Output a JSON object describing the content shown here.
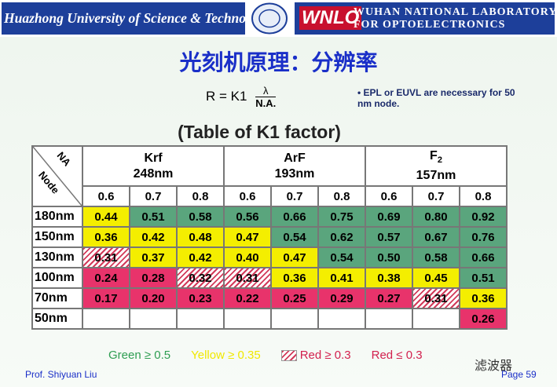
{
  "header": {
    "university": "Huazhong University of Science & Technology",
    "logo": "WNLO",
    "lab_line1": "WUHAN NATIONAL LABORATORY",
    "lab_line2": "FOR OPTOELECTRONICS"
  },
  "title": "光刻机原理：分辨率",
  "formula": {
    "lhs": "R = K1",
    "numerator": "λ",
    "denominator": "N.A."
  },
  "note": "EPL or EUVL are necessary for 50 nm node.",
  "table": {
    "title": "(Table of K1 factor)",
    "corner_top": "NA",
    "corner_bottom": "Node",
    "groups": [
      {
        "name": "Krf",
        "sub": null,
        "wavelength": "248nm"
      },
      {
        "name": "ArF",
        "sub": null,
        "wavelength": "193nm"
      },
      {
        "name": "F",
        "sub": "2",
        "wavelength": "157nm"
      }
    ],
    "na": [
      "0.6",
      "0.7",
      "0.8",
      "0.6",
      "0.7",
      "0.8",
      "0.6",
      "0.7",
      "0.8"
    ],
    "rows": [
      {
        "node": "180nm",
        "cells": [
          {
            "text": "0.44",
            "fill": "yellow"
          },
          {
            "text": "0.51",
            "fill": "green"
          },
          {
            "text": "0.58",
            "fill": "green"
          },
          {
            "text": "0.56",
            "fill": "green"
          },
          {
            "text": "0.66",
            "fill": "green"
          },
          {
            "text": "0.75",
            "fill": "green"
          },
          {
            "text": "0.69",
            "fill": "green"
          },
          {
            "text": "0.80",
            "fill": "green"
          },
          {
            "text": "0.92",
            "fill": "green"
          }
        ]
      },
      {
        "node": "150nm",
        "cells": [
          {
            "text": "0.36",
            "fill": "yellow"
          },
          {
            "text": "0.42",
            "fill": "yellow"
          },
          {
            "text": "0.48",
            "fill": "yellow"
          },
          {
            "text": "0.47",
            "fill": "yellow"
          },
          {
            "text": "0.54",
            "fill": "green"
          },
          {
            "text": "0.62",
            "fill": "green"
          },
          {
            "text": "0.57",
            "fill": "green"
          },
          {
            "text": "0.67",
            "fill": "green"
          },
          {
            "text": "0.76",
            "fill": "green"
          }
        ]
      },
      {
        "node": "130nm",
        "cells": [
          {
            "text": "0.31",
            "fill": "hatched"
          },
          {
            "text": "0.37",
            "fill": "yellow"
          },
          {
            "text": "0.42",
            "fill": "yellow"
          },
          {
            "text": "0.40",
            "fill": "yellow"
          },
          {
            "text": "0.47",
            "fill": "yellow"
          },
          {
            "text": "0.54",
            "fill": "green"
          },
          {
            "text": "0.50",
            "fill": "green"
          },
          {
            "text": "0.58",
            "fill": "green"
          },
          {
            "text": "0.66",
            "fill": "green"
          }
        ]
      },
      {
        "node": "100nm",
        "cells": [
          {
            "text": "0.24",
            "fill": "red"
          },
          {
            "text": "0.28",
            "fill": "red"
          },
          {
            "text": "0.32",
            "fill": "hatched"
          },
          {
            "text": "0.31",
            "fill": "hatched"
          },
          {
            "text": "0.36",
            "fill": "yellow"
          },
          {
            "text": "0.41",
            "fill": "yellow"
          },
          {
            "text": "0.38",
            "fill": "yellow"
          },
          {
            "text": "0.45",
            "fill": "yellow"
          },
          {
            "text": "0.51",
            "fill": "green"
          }
        ]
      },
      {
        "node": "70nm",
        "cells": [
          {
            "text": "0.17",
            "fill": "red"
          },
          {
            "text": "0.20",
            "fill": "red"
          },
          {
            "text": "0.23",
            "fill": "red"
          },
          {
            "text": "0.22",
            "fill": "red"
          },
          {
            "text": "0.25",
            "fill": "red"
          },
          {
            "text": "0.29",
            "fill": "red"
          },
          {
            "text": "0.27",
            "fill": "red"
          },
          {
            "text": "0.31",
            "fill": "hatched"
          },
          {
            "text": "0.36",
            "fill": "yellow"
          }
        ]
      },
      {
        "node": "50nm",
        "cells": [
          null,
          null,
          null,
          null,
          null,
          null,
          null,
          null,
          {
            "text": "0.26",
            "fill": "red"
          }
        ]
      }
    ]
  },
  "legend": [
    {
      "text": "Green ≥ 0.5",
      "fill": "green"
    },
    {
      "text": "Yellow ≥ 0.35",
      "fill": "yellow"
    },
    {
      "text": "Red ≥ 0.3",
      "fill": "hatched"
    },
    {
      "text": "Red  ≤ 0.3",
      "fill": "red"
    }
  ],
  "footer": {
    "author": "Prof. Shiyuan Liu",
    "watermark": "滤波器",
    "page": "Page 59"
  }
}
